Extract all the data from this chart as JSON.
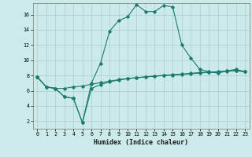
{
  "title": "",
  "xlabel": "Humidex (Indice chaleur)",
  "bg_color": "#cceaea",
  "line_color": "#1a7a6e",
  "grid_color": "#aacccc",
  "xlim": [
    -0.5,
    23.5
  ],
  "ylim": [
    1.0,
    17.5
  ],
  "xticks": [
    0,
    1,
    2,
    3,
    4,
    5,
    6,
    7,
    8,
    9,
    10,
    11,
    12,
    13,
    14,
    15,
    16,
    17,
    18,
    19,
    20,
    21,
    22,
    23
  ],
  "yticks": [
    2,
    4,
    6,
    8,
    10,
    12,
    14,
    16
  ],
  "series1_x": [
    0,
    1,
    2,
    3,
    4,
    5,
    6,
    7,
    8,
    9,
    10,
    11,
    12,
    13,
    14,
    15,
    16,
    17,
    18,
    19,
    20,
    21,
    22,
    23
  ],
  "series1_y": [
    7.8,
    6.5,
    6.3,
    5.2,
    5.0,
    1.8,
    7.0,
    9.6,
    13.8,
    15.2,
    15.7,
    17.3,
    16.4,
    16.4,
    17.2,
    17.0,
    12.0,
    10.3,
    8.8,
    8.5,
    8.3,
    8.6,
    8.8,
    8.5
  ],
  "series2_x": [
    0,
    1,
    2,
    3,
    4,
    5,
    6,
    7,
    8,
    9,
    10,
    11,
    12,
    13,
    14,
    15,
    16,
    17,
    18,
    19,
    20,
    21,
    22,
    23
  ],
  "series2_y": [
    7.8,
    6.5,
    6.3,
    6.3,
    6.5,
    6.6,
    6.85,
    7.05,
    7.25,
    7.45,
    7.6,
    7.72,
    7.82,
    7.92,
    8.02,
    8.1,
    8.18,
    8.28,
    8.38,
    8.45,
    8.5,
    8.58,
    8.65,
    8.5
  ],
  "series3_x": [
    0,
    1,
    2,
    3,
    4,
    5,
    6,
    7,
    8,
    9,
    10,
    11,
    12,
    13,
    14,
    15,
    16,
    17,
    18,
    19,
    20,
    21,
    22,
    23
  ],
  "series3_y": [
    7.8,
    6.5,
    6.3,
    5.2,
    5.0,
    1.8,
    6.3,
    6.8,
    7.15,
    7.4,
    7.58,
    7.7,
    7.8,
    7.9,
    7.98,
    8.05,
    8.12,
    8.22,
    8.32,
    8.4,
    8.47,
    8.55,
    8.62,
    8.5
  ],
  "marker": "D",
  "marker_size": 1.8,
  "linewidth": 0.8,
  "axis_fontsize": 5.5,
  "tick_fontsize": 4.8,
  "xlabel_fontsize": 6.0
}
